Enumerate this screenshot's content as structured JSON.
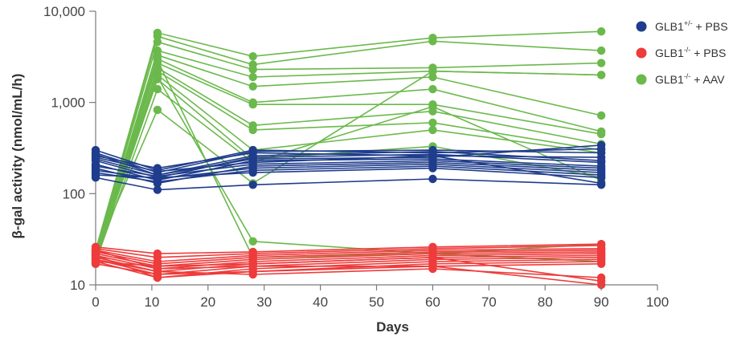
{
  "chart_data": {
    "type": "line",
    "title": "",
    "xlabel": "Days",
    "ylabel": "β-gal activity (nmol/mL/h)",
    "yscale": "log",
    "xlim": [
      0,
      100
    ],
    "ylim": [
      10,
      10000
    ],
    "x_ticks": [
      0,
      10,
      20,
      30,
      40,
      50,
      60,
      70,
      80,
      90,
      100
    ],
    "x_tick_labels": [
      "0",
      "10",
      "20",
      "30",
      "40",
      "50",
      "60",
      "70",
      "80",
      "90",
      "100"
    ],
    "y_ticks": [
      10,
      100,
      1000,
      10000
    ],
    "y_tick_labels": [
      "10",
      "100",
      "1,000",
      "10,000"
    ],
    "x": [
      0,
      11,
      28,
      60,
      90
    ],
    "legend": [
      {
        "base": "GLB1",
        "sup": "+/-",
        "suffix": " + PBS",
        "color": "#1f3d8c",
        "group": "het_pbs"
      },
      {
        "base": "GLB1",
        "sup": "-/-",
        "suffix": " + PBS",
        "color": "#ee3b3b",
        "group": "ko_pbs"
      },
      {
        "base": "GLB1",
        "sup": "-/-",
        "suffix": " + AAV",
        "color": "#6bb94c",
        "group": "ko_aav"
      }
    ],
    "series": [
      {
        "group": "het_pbs",
        "values": [
          300,
          180,
          300,
          280,
          310
        ]
      },
      {
        "group": "het_pbs",
        "values": [
          280,
          170,
          290,
          300,
          280
        ]
      },
      {
        "group": "het_pbs",
        "values": [
          260,
          190,
          280,
          260,
          250
        ]
      },
      {
        "group": "het_pbs",
        "values": [
          240,
          160,
          260,
          290,
          230
        ]
      },
      {
        "group": "het_pbs",
        "values": [
          230,
          150,
          250,
          270,
          220
        ]
      },
      {
        "group": "het_pbs",
        "values": [
          210,
          140,
          230,
          240,
          200
        ]
      },
      {
        "group": "het_pbs",
        "values": [
          200,
          155,
          210,
          230,
          190
        ]
      },
      {
        "group": "het_pbs",
        "values": [
          190,
          130,
          200,
          220,
          180
        ]
      },
      {
        "group": "het_pbs",
        "values": [
          180,
          145,
          190,
          210,
          170
        ]
      },
      {
        "group": "het_pbs",
        "values": [
          170,
          135,
          180,
          200,
          160
        ]
      },
      {
        "group": "het_pbs",
        "values": [
          160,
          150,
          170,
          190,
          150
        ]
      },
      {
        "group": "het_pbs",
        "values": [
          150,
          110,
          125,
          145,
          125
        ]
      },
      {
        "group": "het_pbs",
        "values": [
          270,
          160,
          240,
          250,
          340
        ]
      },
      {
        "group": "het_pbs",
        "values": [
          250,
          175,
          220,
          260,
          130
        ]
      },
      {
        "group": "ko_pbs",
        "values": [
          26,
          22,
          23,
          26,
          28
        ]
      },
      {
        "group": "ko_pbs",
        "values": [
          25,
          20,
          22,
          25,
          27
        ]
      },
      {
        "group": "ko_pbs",
        "values": [
          24,
          18,
          21,
          24,
          25
        ]
      },
      {
        "group": "ko_pbs",
        "values": [
          23,
          17,
          20,
          23,
          24
        ]
      },
      {
        "group": "ko_pbs",
        "values": [
          22,
          16,
          19,
          22,
          23
        ]
      },
      {
        "group": "ko_pbs",
        "values": [
          21,
          15,
          18,
          21,
          22
        ]
      },
      {
        "group": "ko_pbs",
        "values": [
          20,
          14,
          17,
          20,
          21
        ]
      },
      {
        "group": "ko_pbs",
        "values": [
          19,
          13,
          16,
          19,
          20
        ]
      },
      {
        "group": "ko_pbs",
        "values": [
          18,
          12,
          15,
          18,
          19
        ]
      },
      {
        "group": "ko_pbs",
        "values": [
          17,
          13,
          14,
          17,
          18
        ]
      },
      {
        "group": "ko_pbs",
        "values": [
          24,
          15,
          16,
          16,
          17
        ]
      },
      {
        "group": "ko_pbs",
        "values": [
          19,
          14,
          13,
          15,
          12
        ]
      },
      {
        "group": "ko_pbs",
        "values": [
          21,
          12,
          14,
          16,
          10
        ]
      },
      {
        "group": "ko_pbs",
        "values": [
          18,
          16,
          17,
          20,
          11
        ]
      },
      {
        "group": "ko_aav",
        "values": [
          24,
          5800,
          3200,
          5100,
          6000
        ]
      },
      {
        "group": "ko_aav",
        "values": [
          23,
          5300,
          2600,
          4700,
          3700
        ]
      },
      {
        "group": "ko_aav",
        "values": [
          22,
          4600,
          2300,
          2400,
          2700
        ]
      },
      {
        "group": "ko_aav",
        "values": [
          21,
          3700,
          1900,
          2200,
          2000
        ]
      },
      {
        "group": "ko_aav",
        "values": [
          20,
          3300,
          1500,
          1900,
          720
        ]
      },
      {
        "group": "ko_aav",
        "values": [
          19,
          3000,
          1000,
          1400,
          480
        ]
      },
      {
        "group": "ko_aav",
        "values": [
          18,
          2700,
          950,
          950,
          450
        ]
      },
      {
        "group": "ko_aav",
        "values": [
          17,
          2400,
          560,
          800,
          350
        ]
      },
      {
        "group": "ko_aav",
        "values": [
          22,
          2200,
          500,
          600,
          300
        ]
      },
      {
        "group": "ko_aav",
        "values": [
          20,
          2000,
          300,
          500,
          280
        ]
      },
      {
        "group": "ko_aav",
        "values": [
          19,
          1800,
          240,
          330,
          150
        ]
      },
      {
        "group": "ko_aav",
        "values": [
          18,
          1400,
          220,
          900,
          140
        ]
      },
      {
        "group": "ko_aav",
        "values": [
          21,
          1900,
          30,
          22,
          28
        ]
      },
      {
        "group": "ko_aav",
        "values": [
          17,
          2900,
          20,
          22,
          18
        ]
      },
      {
        "group": "ko_aav",
        "values": [
          23,
          830,
          130,
          2200,
          2000
        ]
      }
    ]
  }
}
